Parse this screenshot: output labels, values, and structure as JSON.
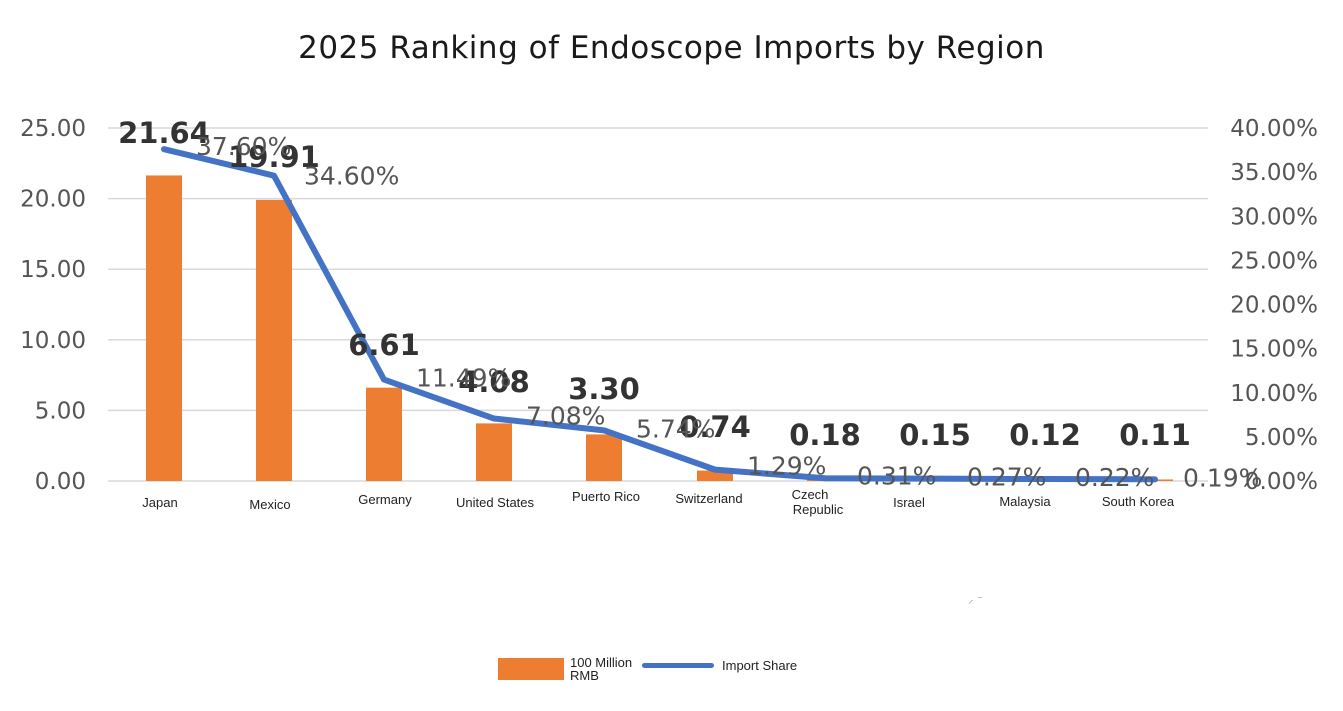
{
  "chart_data": {
    "type": "bar",
    "title": "2025 Ranking of Endoscope Imports by Region",
    "categories": [
      "Japan",
      "Mexico",
      "Germany",
      "United States",
      "Puerto Rico",
      "Switzerland",
      "Czech Republic",
      "Israel",
      "Malaysia",
      "South Korea"
    ],
    "series": [
      {
        "name": "100 Million RMB",
        "type": "bar",
        "axis": "left",
        "color": "#ED7D31",
        "values": [
          21.64,
          19.91,
          6.61,
          4.08,
          3.3,
          0.74,
          0.18,
          0.15,
          0.12,
          0.11
        ],
        "labels": [
          "21.64",
          "19.91",
          "6.61",
          "4.08",
          "3.30",
          "0.74",
          "0.18",
          "0.15",
          "0.12",
          "0.11"
        ]
      },
      {
        "name": "Import Share",
        "type": "line",
        "axis": "right",
        "color": "#4472C4",
        "values": [
          37.6,
          34.6,
          11.49,
          7.08,
          5.74,
          1.29,
          0.31,
          0.27,
          0.22,
          0.19
        ],
        "labels": [
          "37.60%",
          "34.60%",
          "11.49%",
          "7.08%",
          "5.74%",
          "1.29%",
          "0.31%",
          "0.27%",
          "0.22%",
          "0.19%"
        ]
      }
    ],
    "y_left": {
      "ylim": [
        0,
        25
      ],
      "ticks": [
        "0.00",
        "5.00",
        "10.00",
        "15.00",
        "20.00",
        "25.00"
      ]
    },
    "y_right": {
      "ylim": [
        0,
        40
      ],
      "ticks": [
        "0.00%",
        "5.00%",
        "10.00%",
        "15.00%",
        "20.00%",
        "25.00%",
        "30.00%",
        "35.00%",
        "40.00%"
      ]
    },
    "grid": true,
    "legend": "bottom-center"
  },
  "legend_labels": {
    "bar_line1": "100 Million",
    "bar_line2": "RMB",
    "line": "Import Share"
  },
  "stray_mark": "⸝ ⁻"
}
